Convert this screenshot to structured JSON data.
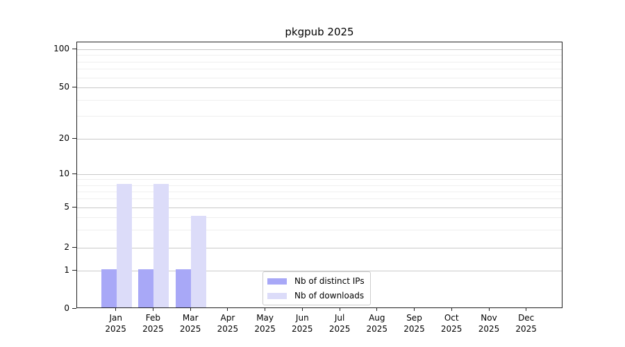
{
  "chart_data": {
    "type": "bar",
    "title": "pkgpub 2025",
    "xlabel": "",
    "ylabel": "",
    "categories": [
      "Jan 2025",
      "Feb 2025",
      "Mar 2025",
      "Apr 2025",
      "May 2025",
      "Jun 2025",
      "Jul 2025",
      "Aug 2025",
      "Sep 2025",
      "Oct 2025",
      "Nov 2025",
      "Dec 2025"
    ],
    "series": [
      {
        "name": "Nb of distinct IPs",
        "color": "#a8a8f7",
        "values": [
          1,
          1,
          1,
          0,
          0,
          0,
          0,
          0,
          0,
          0,
          0,
          0
        ]
      },
      {
        "name": "Nb of downloads",
        "color": "#dcdcf9",
        "values": [
          8,
          8,
          4,
          0,
          0,
          0,
          0,
          0,
          0,
          0,
          0,
          0
        ]
      }
    ],
    "yticks": [
      0,
      1,
      2,
      5,
      10,
      20,
      50,
      100
    ],
    "minor_yticks": [
      3,
      4,
      6,
      7,
      8,
      9,
      30,
      40,
      60,
      70,
      80,
      90
    ],
    "yscale": "log-like with zero baseline",
    "ylim": [
      0,
      113
    ],
    "grid": true,
    "legend_position": "inside bottom-center"
  }
}
